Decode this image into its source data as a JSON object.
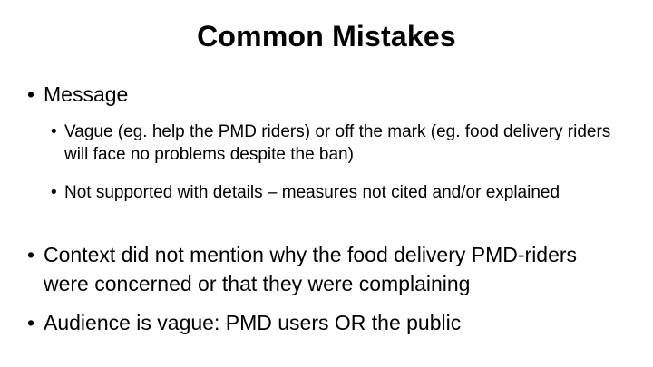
{
  "slide": {
    "title": "Common Mistakes",
    "bullet_glyph": "•",
    "bullets": [
      {
        "text": "Message"
      },
      {
        "text": "Vague (eg. help the PMD riders) or off the mark (eg. food delivery riders will face no problems despite the ban)"
      },
      {
        "text": "Not supported with details – measures not cited and/or explained"
      },
      {
        "text": "Context did not mention why the food delivery PMD-riders were concerned or that they were complaining"
      },
      {
        "text": "Audience is vague: PMD users OR the public"
      }
    ]
  }
}
